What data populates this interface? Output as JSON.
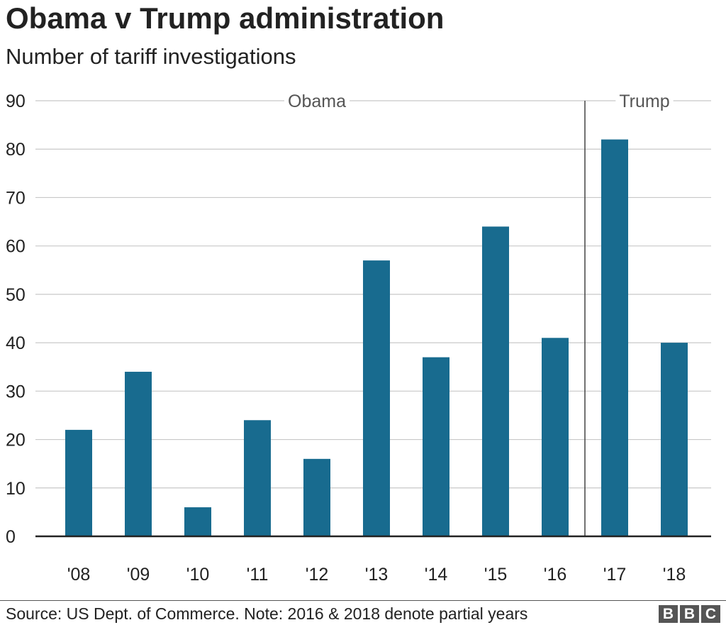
{
  "header": {
    "title": "Obama v Trump administration",
    "subtitle": "Number of tariff investigations"
  },
  "chart_data": {
    "type": "bar",
    "title": "Obama v Trump administration",
    "subtitle": "Number of tariff investigations",
    "categories": [
      "'08",
      "'09",
      "'10",
      "'11",
      "'12",
      "'13",
      "'14",
      "'15",
      "'16",
      "'17",
      "'18"
    ],
    "values": [
      22,
      34,
      6,
      24,
      16,
      57,
      37,
      64,
      41,
      82,
      40
    ],
    "ylim": [
      0,
      90
    ],
    "yticks": [
      0,
      10,
      20,
      30,
      40,
      50,
      60,
      70,
      80,
      90
    ],
    "grid": true,
    "xlabel": "",
    "ylabel": "",
    "bar_color": "#186b8f",
    "annotations": [
      {
        "label": "Obama",
        "from_category": "'08",
        "to_category": "'16"
      },
      {
        "label": "Trump",
        "from_category": "'17",
        "to_category": "'18"
      }
    ],
    "divider_between": [
      "'16",
      "'17"
    ]
  },
  "footer": {
    "source": "Source: US Dept. of Commerce. Note: 2016 & 2018 denote partial years",
    "logo_letters": [
      "B",
      "B",
      "C"
    ]
  }
}
